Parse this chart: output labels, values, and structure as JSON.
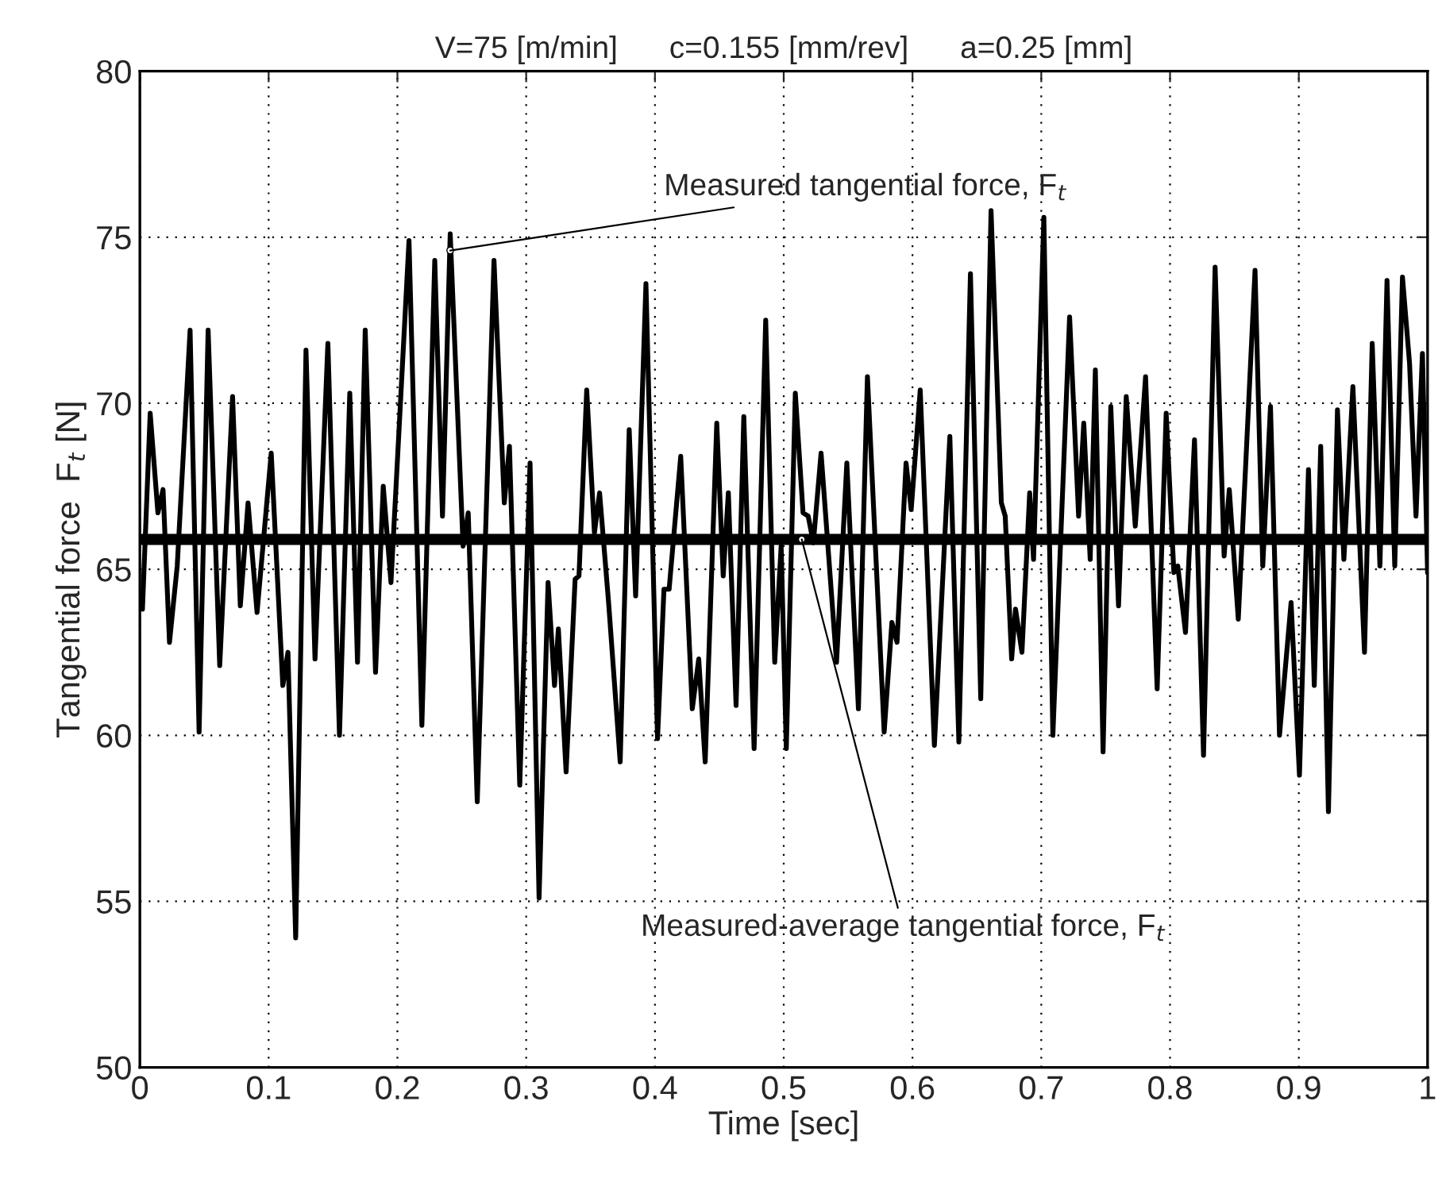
{
  "chart_data": {
    "type": "line",
    "title": "V=75 [m/min]      c=0.155 [mm/rev]      a=0.25 [mm]",
    "xlabel": "Time [sec]",
    "ylabel": "Tangential force  F$_{t}$ [N]",
    "series": [
      {
        "color": "#000000",
        "x": [
          0.002,
          0.008,
          0.014,
          0.018,
          0.023,
          0.029,
          0.039,
          0.046,
          0.053,
          0.062,
          0.072,
          0.078,
          0.084,
          0.091,
          0.102,
          0.111,
          0.115,
          0.121,
          0.129,
          0.136,
          0.146,
          0.155,
          0.163,
          0.169,
          0.175,
          0.183,
          0.189,
          0.195,
          0.209,
          0.219,
          0.229,
          0.235,
          0.241,
          0.251,
          0.255,
          0.262,
          0.275,
          0.283,
          0.287,
          0.295,
          0.303,
          0.31,
          0.317,
          0.322,
          0.325,
          0.331,
          0.338,
          0.341,
          0.347,
          0.353,
          0.357,
          0.364,
          0.373,
          0.38,
          0.385,
          0.393,
          0.402,
          0.407,
          0.411,
          0.42,
          0.429,
          0.434,
          0.439,
          0.448,
          0.453,
          0.457,
          0.463,
          0.469,
          0.477,
          0.486,
          0.493,
          0.498,
          0.502,
          0.509,
          0.515,
          0.519,
          0.523,
          0.529,
          0.541,
          0.549,
          0.558,
          0.565,
          0.578,
          0.584,
          0.588,
          0.595,
          0.599,
          0.606,
          0.617,
          0.629,
          0.636,
          0.645,
          0.653,
          0.661,
          0.669,
          0.672,
          0.677,
          0.68,
          0.685,
          0.691,
          0.694,
          0.702,
          0.709,
          0.722,
          0.729,
          0.733,
          0.738,
          0.742,
          0.748,
          0.754,
          0.76,
          0.766,
          0.773,
          0.781,
          0.79,
          0.797,
          0.803,
          0.806,
          0.812,
          0.819,
          0.826,
          0.835,
          0.842,
          0.846,
          0.853,
          0.866,
          0.872,
          0.878,
          0.885,
          0.894,
          0.9005,
          0.9075,
          0.912,
          0.917,
          0.923,
          0.93,
          0.935,
          0.942,
          0.951,
          0.957,
          0.963,
          0.9685,
          0.9745,
          0.9805,
          0.986,
          0.991,
          0.996,
          1.0
        ],
        "values": [
          63.8,
          69.7,
          66.7,
          67.4,
          62.8,
          65.1,
          72.2,
          60.1,
          72.2,
          62.1,
          70.2,
          63.9,
          67.0,
          63.7,
          68.5,
          61.5,
          62.5,
          53.9,
          71.6,
          62.3,
          71.8,
          60.0,
          70.3,
          62.2,
          72.2,
          61.9,
          67.5,
          64.6,
          74.9,
          60.3,
          74.3,
          66.6,
          75.1,
          65.7,
          66.7,
          58.0,
          74.3,
          67.0,
          68.7,
          58.5,
          68.2,
          55.1,
          64.6,
          61.5,
          63.2,
          58.9,
          64.7,
          64.8,
          70.4,
          66.1,
          67.3,
          64.0,
          59.2,
          69.2,
          64.2,
          73.6,
          59.9,
          64.4,
          64.4,
          68.4,
          60.8,
          62.3,
          59.2,
          69.4,
          64.8,
          67.3,
          60.9,
          69.6,
          59.6,
          72.5,
          62.2,
          65.7,
          59.6,
          70.3,
          66.7,
          66.6,
          65.8,
          68.5,
          62.2,
          68.2,
          60.8,
          70.8,
          60.1,
          63.4,
          62.8,
          68.2,
          66.8,
          70.4,
          59.7,
          69.0,
          59.8,
          73.9,
          61.1,
          75.8,
          67.0,
          66.6,
          62.3,
          63.8,
          62.5,
          67.3,
          65.3,
          75.6,
          60.0,
          72.6,
          66.6,
          69.4,
          65.3,
          71.0,
          59.5,
          69.9,
          63.9,
          70.2,
          66.3,
          70.8,
          61.4,
          69.7,
          64.9,
          65.1,
          63.1,
          68.9,
          59.4,
          74.1,
          65.4,
          67.4,
          63.5,
          74.0,
          65.1,
          69.9,
          60.0,
          64.0,
          58.8,
          68.0,
          61.5,
          68.7,
          57.7,
          69.8,
          65.3,
          70.5,
          62.5,
          71.8,
          65.1,
          73.7,
          65.1,
          73.8,
          71.2,
          66.6,
          71.5,
          64.9
        ]
      }
    ],
    "ref_lines": [
      {
        "axis": "y",
        "value": 65.9,
        "color": "#000000"
      }
    ],
    "annotations": [
      {
        "text": "Measured tangential force, F$_{t}$",
        "x": 0.241,
        "y": 74.6
      },
      {
        "text": "Measured-average tangential force, F$_{t}$",
        "x": 0.514,
        "y": 65.9
      }
    ],
    "xlim": [
      0,
      1
    ],
    "ylim": [
      50,
      80
    ],
    "xticks": [
      0,
      0.1,
      0.2,
      0.3,
      0.4,
      0.5,
      0.6,
      0.7,
      0.8,
      0.9,
      1
    ],
    "yticks": [
      50,
      55,
      60,
      65,
      70,
      75,
      80
    ],
    "grid": true,
    "marker": "none",
    "line_style": "solid",
    "legend": false
  }
}
